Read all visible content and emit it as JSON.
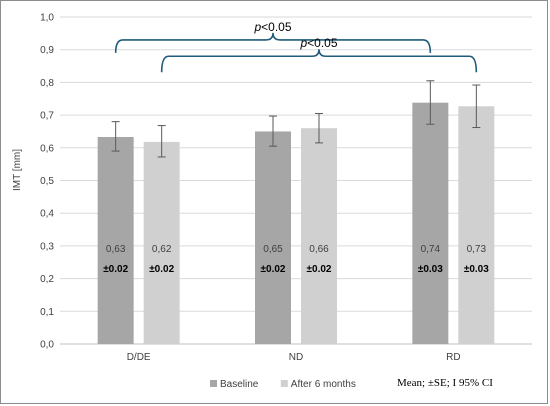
{
  "chart_data": {
    "type": "bar",
    "ylabel": "IMT [mm]",
    "ylim": [
      0,
      1.0
    ],
    "yticks": [
      0,
      0.1,
      0.2,
      0.3,
      0.4,
      0.5,
      0.6,
      0.7,
      0.8,
      0.9,
      1.0
    ],
    "ytick_labels": [
      "0,0",
      "0,1",
      "0,2",
      "0,3",
      "0,4",
      "0,5",
      "0,6",
      "0,7",
      "0,8",
      "0,9",
      "1,0"
    ],
    "categories": [
      "D/DE",
      "ND",
      "RD"
    ],
    "series": [
      {
        "name": "Baseline",
        "color": "#a6a6a6",
        "values": [
          0.633,
          0.65,
          0.738
        ],
        "ci_low": [
          0.59,
          0.605,
          0.672
        ],
        "ci_high": [
          0.68,
          0.697,
          0.805
        ],
        "value_labels": [
          "0,63",
          "0,65",
          "0,74"
        ],
        "se_labels": [
          "±0.02",
          "±0.02",
          "±0.03"
        ]
      },
      {
        "name": "After 6 months",
        "color": "#d0d0d0",
        "values": [
          0.618,
          0.66,
          0.727
        ],
        "ci_low": [
          0.572,
          0.615,
          0.662
        ],
        "ci_high": [
          0.668,
          0.705,
          0.792
        ],
        "value_labels": [
          "0,62",
          "0,66",
          "0,73"
        ],
        "se_labels": [
          "±0.02",
          "±0.02",
          "±0.03"
        ]
      }
    ],
    "grid": true,
    "legend_position": "bottom",
    "annotations": {
      "bracket_top": {
        "from_category": "D/DE",
        "to_category": "RD",
        "from_series": 0,
        "to_series": 0,
        "level": 0.93,
        "text_italic": "p",
        "text": "<0.05"
      },
      "bracket_bottom": {
        "from_category": "D/DE",
        "to_category": "RD",
        "from_series": 1,
        "to_series": 1,
        "level": 0.88,
        "text_italic": "p",
        "text": "<0.05"
      }
    },
    "footnote": "Mean; ±SE; I 95% CI"
  }
}
